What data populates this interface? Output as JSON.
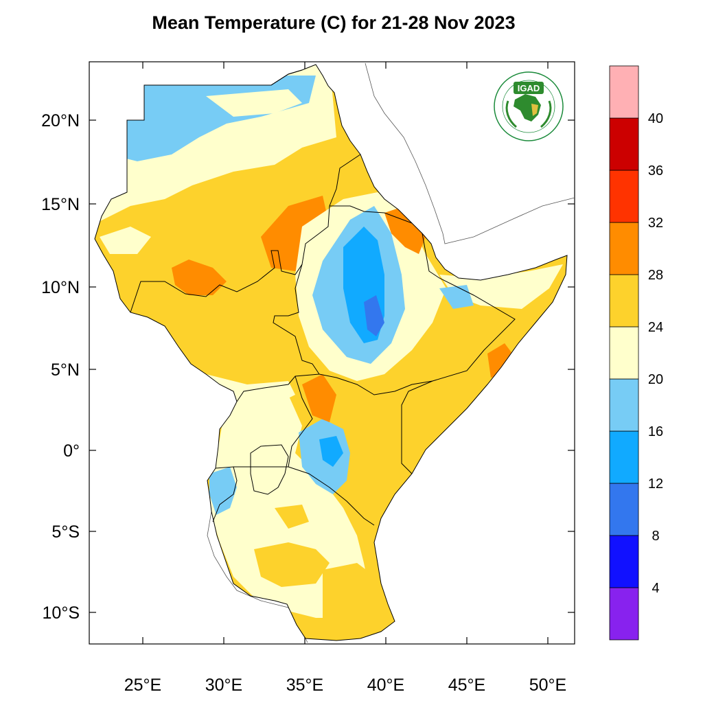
{
  "title": "Mean Temperature (C) for 21-28 Nov 2023",
  "logo": {
    "acronym": "IGAD",
    "ring_top": "INTERGOVERNMENTAL AUTHORITY ON DEVELOPMENT",
    "ring_bottom": "AUTORITÉ INTERGOUVERNEMENTALE POUR LE DÉVELOPPEMENT",
    "color": "#1a8a3a"
  },
  "axes": {
    "lon_ticks": [
      "25°E",
      "30°E",
      "35°E",
      "40°E",
      "45°E",
      "50°E"
    ],
    "lat_ticks": [
      "20°N",
      "15°N",
      "10°N",
      "5°N",
      "0°",
      "5°S",
      "10°S"
    ]
  },
  "colorbar": {
    "levels": [
      "4",
      "8",
      "12",
      "16",
      "20",
      "24",
      "28",
      "32",
      "36",
      "40"
    ],
    "colors": [
      "#8822ee",
      "#1111ff",
      "#3377ee",
      "#11aaff",
      "#77ccf5",
      "#ffffcc",
      "#fdd22c",
      "#ff8c00",
      "#ff3300",
      "#cc0000",
      "#ffb0b4"
    ]
  },
  "palette": {
    "cool": "#77ccf5",
    "mild": "#ffffcc",
    "warm": "#fdd22c",
    "hot": "#ff8c00",
    "mid_blue": "#11aaff",
    "dark_blue": "#3377ee"
  }
}
